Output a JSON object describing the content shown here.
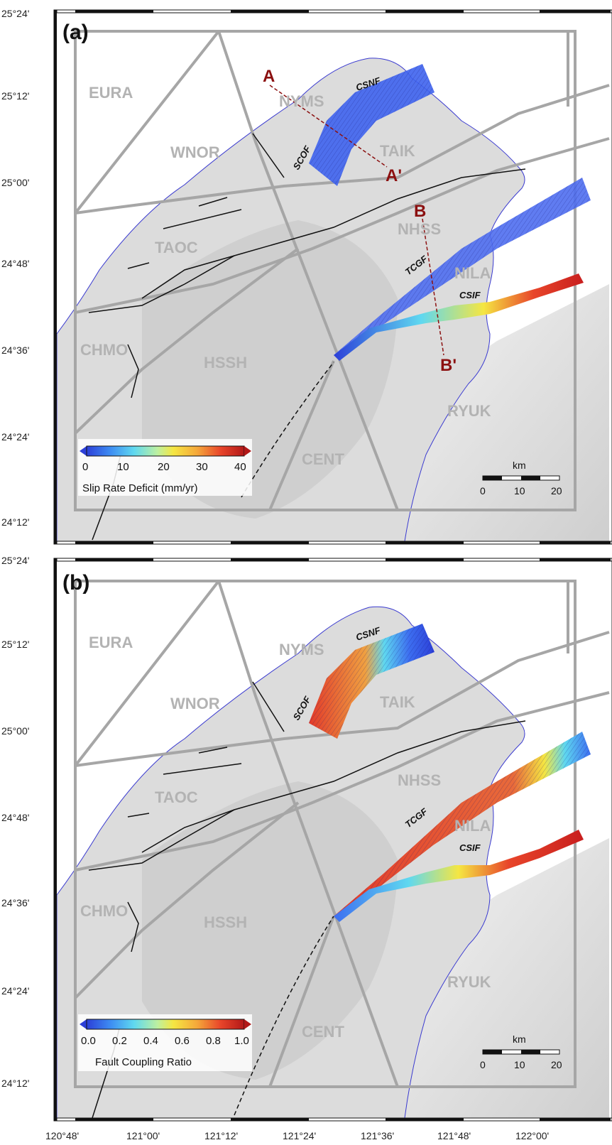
{
  "lat_ticks": [
    "25°24'",
    "25°12'",
    "25°00'",
    "24°48'",
    "24°36'",
    "24°24'",
    "24°12'"
  ],
  "lon_ticks": [
    "120°48'",
    "121°00'",
    "121°12'",
    "121°24'",
    "121°36'",
    "121°48'",
    "122°00'"
  ],
  "blocks": [
    "EURA",
    "NYMS",
    "WNOR",
    "TAIK",
    "TAOC",
    "NHSS",
    "NILA",
    "CHMO",
    "HSSH",
    "RYUK",
    "CENT",
    "NYMS"
  ],
  "block_labels": {
    "eura": "EURA",
    "nyms": "NYMS",
    "wnor": "WNOR",
    "taik": "TAIK",
    "taoc": "TAOC",
    "nhss": "NHSS",
    "nila": "NILA",
    "chmo": "CHMO",
    "hssh": "HSSH",
    "ryuk": "RYUK",
    "cent": "CENT"
  },
  "faults": {
    "csnf": "CSNF",
    "scof": "SCOF",
    "tcgf": "TCGF",
    "csif": "CSIF"
  },
  "profiles": {
    "a": "A",
    "a2": "A'",
    "b": "B",
    "b2": "B'"
  },
  "scale": {
    "unit": "km",
    "t0": "0",
    "t1": "10",
    "t2": "20"
  },
  "panel_a": {
    "label": "(a)",
    "colorbar": {
      "title": "Slip Rate Deficit (mm/yr)",
      "ticks": [
        "0",
        "10",
        "20",
        "30",
        "40"
      ]
    }
  },
  "panel_b": {
    "label": "(b)",
    "colorbar": {
      "title": "Fault Coupling Ratio",
      "ticks": [
        "0.0",
        "0.2",
        "0.4",
        "0.6",
        "0.8",
        "1.0"
      ]
    }
  },
  "colors": {
    "block_boundary": "#a6a6a6",
    "coastline": "#3a3ad0",
    "fault_trace": "#111111",
    "profile_line": "#8b1010",
    "colorbar": [
      "#2c3fd8",
      "#3d8cf2",
      "#5fd8f0",
      "#bdf0a0",
      "#f5e642",
      "#f5a83a",
      "#e8452a",
      "#b21818"
    ]
  }
}
